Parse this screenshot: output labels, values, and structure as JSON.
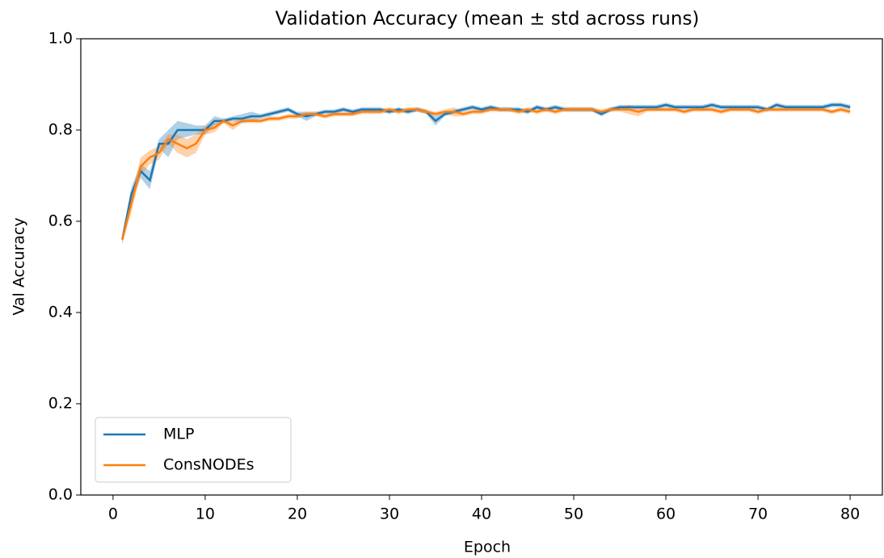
{
  "chart_data": {
    "type": "line",
    "title": "Validation Accuracy (mean ± std across runs)",
    "xlabel": "Epoch",
    "ylabel": "Val Accuracy",
    "x": [
      1,
      2,
      3,
      4,
      5,
      6,
      7,
      8,
      9,
      10,
      11,
      12,
      13,
      14,
      15,
      16,
      17,
      18,
      19,
      20,
      21,
      22,
      23,
      24,
      25,
      26,
      27,
      28,
      29,
      30,
      31,
      32,
      33,
      34,
      35,
      36,
      37,
      38,
      39,
      40,
      41,
      42,
      43,
      44,
      45,
      46,
      47,
      48,
      49,
      50,
      51,
      52,
      53,
      54,
      55,
      56,
      57,
      58,
      59,
      60,
      61,
      62,
      63,
      64,
      65,
      66,
      67,
      68,
      69,
      70,
      71,
      72,
      73,
      74,
      75,
      76,
      77,
      78,
      79,
      80
    ],
    "series": [
      {
        "name": "MLP",
        "color": "#1f77b4",
        "values": [
          0.56,
          0.66,
          0.71,
          0.69,
          0.77,
          0.77,
          0.8,
          0.8,
          0.8,
          0.8,
          0.82,
          0.82,
          0.825,
          0.825,
          0.83,
          0.83,
          0.835,
          0.84,
          0.845,
          0.835,
          0.83,
          0.835,
          0.84,
          0.84,
          0.845,
          0.84,
          0.845,
          0.845,
          0.845,
          0.84,
          0.845,
          0.84,
          0.845,
          0.84,
          0.82,
          0.835,
          0.84,
          0.845,
          0.85,
          0.845,
          0.85,
          0.845,
          0.845,
          0.845,
          0.84,
          0.85,
          0.845,
          0.85,
          0.845,
          0.845,
          0.845,
          0.845,
          0.835,
          0.845,
          0.85,
          0.85,
          0.85,
          0.85,
          0.85,
          0.855,
          0.85,
          0.85,
          0.85,
          0.85,
          0.855,
          0.85,
          0.85,
          0.85,
          0.85,
          0.85,
          0.845,
          0.855,
          0.85,
          0.85,
          0.85,
          0.85,
          0.85,
          0.855,
          0.855,
          0.85
        ],
        "std": [
          0.01,
          0.015,
          0.015,
          0.02,
          0.01,
          0.03,
          0.02,
          0.015,
          0.01,
          0.01,
          0.01,
          0.005,
          0.005,
          0.01,
          0.01,
          0.005,
          0.005,
          0.005,
          0.005,
          0.005,
          0.01,
          0.005,
          0.005,
          0.005,
          0.005,
          0.005,
          0.005,
          0.005,
          0.005,
          0.005,
          0.005,
          0.005,
          0.005,
          0.005,
          0.01,
          0.005,
          0.005,
          0.005,
          0.005,
          0.005,
          0.005,
          0.005,
          0.005,
          0.005,
          0.005,
          0.005,
          0.005,
          0.005,
          0.005,
          0.005,
          0.005,
          0.005,
          0.005,
          0.005,
          0.005,
          0.005,
          0.005,
          0.005,
          0.005,
          0.005,
          0.005,
          0.005,
          0.005,
          0.005,
          0.005,
          0.005,
          0.005,
          0.005,
          0.005,
          0.005,
          0.005,
          0.005,
          0.005,
          0.005,
          0.005,
          0.005,
          0.005,
          0.005,
          0.005,
          0.005
        ]
      },
      {
        "name": "ConsNODEs",
        "color": "#ff7f0e",
        "values": [
          0.56,
          0.64,
          0.72,
          0.74,
          0.75,
          0.78,
          0.77,
          0.76,
          0.77,
          0.8,
          0.805,
          0.82,
          0.81,
          0.82,
          0.82,
          0.82,
          0.825,
          0.825,
          0.83,
          0.83,
          0.835,
          0.835,
          0.83,
          0.835,
          0.835,
          0.835,
          0.84,
          0.84,
          0.84,
          0.845,
          0.84,
          0.845,
          0.845,
          0.84,
          0.835,
          0.84,
          0.84,
          0.835,
          0.84,
          0.84,
          0.845,
          0.845,
          0.845,
          0.84,
          0.845,
          0.84,
          0.845,
          0.84,
          0.845,
          0.845,
          0.845,
          0.845,
          0.84,
          0.845,
          0.845,
          0.845,
          0.84,
          0.845,
          0.845,
          0.845,
          0.845,
          0.84,
          0.845,
          0.845,
          0.845,
          0.84,
          0.845,
          0.845,
          0.845,
          0.84,
          0.845,
          0.845,
          0.845,
          0.845,
          0.845,
          0.845,
          0.845,
          0.84,
          0.845,
          0.84
        ],
        "std": [
          0.01,
          0.02,
          0.02,
          0.015,
          0.015,
          0.01,
          0.02,
          0.02,
          0.02,
          0.01,
          0.01,
          0.005,
          0.01,
          0.005,
          0.005,
          0.005,
          0.005,
          0.005,
          0.005,
          0.005,
          0.005,
          0.005,
          0.005,
          0.005,
          0.005,
          0.005,
          0.005,
          0.005,
          0.005,
          0.005,
          0.005,
          0.005,
          0.005,
          0.005,
          0.005,
          0.005,
          0.01,
          0.005,
          0.005,
          0.005,
          0.005,
          0.005,
          0.005,
          0.005,
          0.005,
          0.005,
          0.005,
          0.005,
          0.005,
          0.005,
          0.005,
          0.005,
          0.005,
          0.005,
          0.005,
          0.01,
          0.01,
          0.005,
          0.005,
          0.005,
          0.005,
          0.005,
          0.005,
          0.005,
          0.005,
          0.005,
          0.005,
          0.005,
          0.005,
          0.005,
          0.005,
          0.005,
          0.005,
          0.005,
          0.005,
          0.005,
          0.005,
          0.005,
          0.005,
          0.005
        ]
      }
    ],
    "xlim": [
      -3.5,
      83.5
    ],
    "ylim": [
      0,
      1
    ],
    "xticks": [
      0,
      10,
      20,
      30,
      40,
      50,
      60,
      70,
      80
    ],
    "yticks": [
      {
        "value": 0,
        "label": "0.0"
      },
      0.2,
      0.4,
      0.6,
      0.8,
      {
        "value": 1,
        "label": "1.0"
      }
    ],
    "grid": false,
    "legend": "lower left"
  }
}
